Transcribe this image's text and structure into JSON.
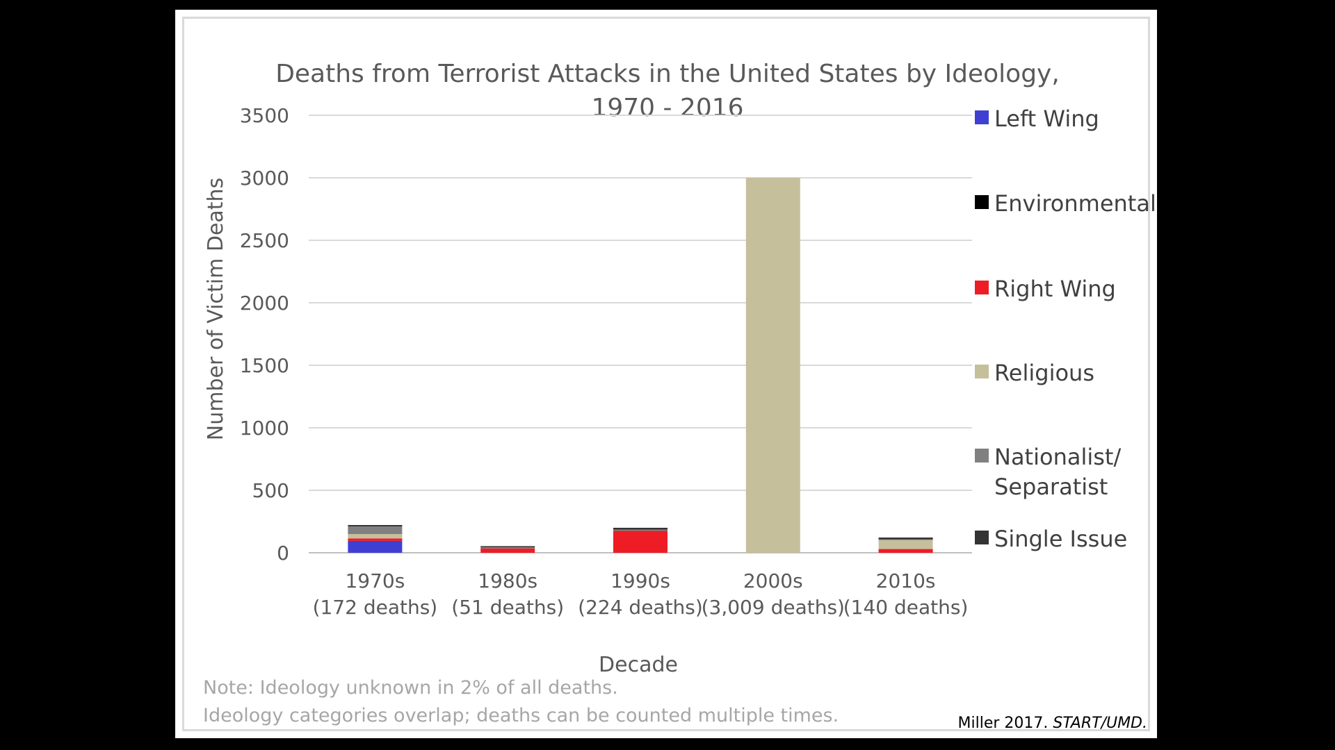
{
  "chart_data": {
    "type": "bar",
    "stacked": true,
    "title_lines": [
      "Deaths from Terrorist Attacks in the United States by Ideology,",
      "1970 - 2016"
    ],
    "xlabel": "Decade",
    "ylabel": "Number of Victim Deaths",
    "ylim": [
      0,
      3500
    ],
    "yticks": [
      "0",
      "500",
      "1000",
      "1500",
      "2000",
      "2500",
      "3000",
      "3500"
    ],
    "grid": true,
    "legend_position": "right",
    "categories": [
      {
        "decade": "1970s",
        "total": "(172 deaths)"
      },
      {
        "decade": "1980s",
        "total": "(51 deaths)"
      },
      {
        "decade": "1990s",
        "total": "(224 deaths)"
      },
      {
        "decade": "2000s",
        "total": "(3,009 deaths)"
      },
      {
        "decade": "2010s",
        "total": "(140 deaths)"
      }
    ],
    "series": [
      {
        "name": "Left Wing",
        "color": "#3f3fd4",
        "values": [
          95,
          0,
          0,
          0,
          0
        ]
      },
      {
        "name": "Environmental",
        "color": "#000000",
        "values": [
          0,
          0,
          0,
          0,
          0
        ]
      },
      {
        "name": "Right Wing",
        "color": "#ee1c25",
        "values": [
          20,
          35,
          175,
          0,
          30
        ]
      },
      {
        "name": "Religious",
        "color": "#c6bf9b",
        "values": [
          35,
          0,
          0,
          3000,
          72
        ]
      },
      {
        "name": "Nationalist/ Separatist",
        "legend_lines": [
          "Nationalist/",
          "Separatist"
        ],
        "color": "#808080",
        "values": [
          60,
          8,
          10,
          0,
          5
        ]
      },
      {
        "name": "Single Issue",
        "color": "#333333",
        "values": [
          12,
          10,
          15,
          0,
          15
        ]
      }
    ]
  },
  "notes": {
    "line1": "Note: Ideology unknown in 2% of all deaths.",
    "line2": "Ideology categories overlap; deaths can be counted multiple times."
  },
  "credit": {
    "author": "Miller 2017. ",
    "source": "START/UMD."
  }
}
